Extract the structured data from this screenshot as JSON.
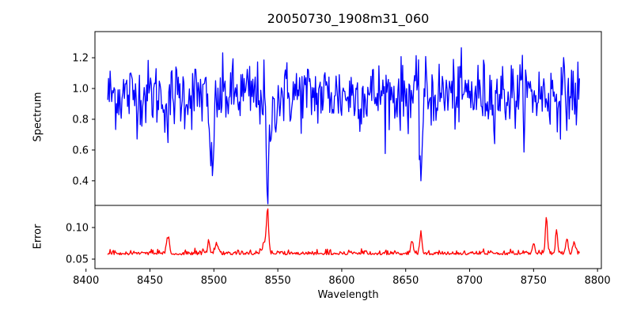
{
  "chart_data": {
    "type": "line",
    "title": "20050730_1908m31_060",
    "xlabel": "Wavelength",
    "xlim": [
      8407,
      8803
    ],
    "xticks": [
      8400,
      8450,
      8500,
      8550,
      8600,
      8650,
      8700,
      8750,
      8800
    ],
    "panels": [
      {
        "ylabel": "Spectrum",
        "ylim": [
          0.24,
          1.37
        ],
        "yticks": [
          0.4,
          0.6,
          0.8,
          1.0,
          1.2
        ],
        "ytick_labels": [
          "0.4",
          "0.6",
          "0.8",
          "1.0",
          "1.2"
        ],
        "series": [
          {
            "color": "#0000ff",
            "x_start": 8417,
            "x_end": 8786,
            "noise": 0.11,
            "baseline": 0.96,
            "features": [
              {
                "x": 8498,
                "depth": 0.35,
                "width": 1.2
              },
              {
                "x": 8542,
                "depth": 0.68,
                "width": 1.0
              },
              {
                "x": 8545,
                "depth": 0.15,
                "width": 2.0
              },
              {
                "x": 8662,
                "depth": 0.5,
                "width": 1.0
              },
              {
                "x": 8498.5,
                "depth": 0.15,
                "width": 3.0
              },
              {
                "x": 8464,
                "depth": 0.18,
                "width": 1.2
              }
            ]
          }
        ]
      },
      {
        "ylabel": "Error",
        "ylim": [
          0.035,
          0.135
        ],
        "yticks": [
          0.05,
          0.1
        ],
        "ytick_labels": [
          "0.05",
          "0.10"
        ],
        "series": [
          {
            "color": "#ff0000",
            "x_start": 8417,
            "x_end": 8786,
            "noise": 0.004,
            "baseline": 0.058,
            "features": [
              {
                "x": 8464,
                "height": 0.035,
                "width": 1.0
              },
              {
                "x": 8496,
                "height": 0.025,
                "width": 0.8
              },
              {
                "x": 8502,
                "height": 0.018,
                "width": 1.0
              },
              {
                "x": 8542,
                "height": 0.07,
                "width": 0.8
              },
              {
                "x": 8540,
                "height": 0.02,
                "width": 2.0
              },
              {
                "x": 8655,
                "height": 0.022,
                "width": 1.0
              },
              {
                "x": 8662,
                "height": 0.04,
                "width": 0.8
              },
              {
                "x": 8750,
                "height": 0.018,
                "width": 1.0
              },
              {
                "x": 8760,
                "height": 0.065,
                "width": 0.8
              },
              {
                "x": 8768,
                "height": 0.04,
                "width": 0.8
              },
              {
                "x": 8776,
                "height": 0.03,
                "width": 0.8
              },
              {
                "x": 8782,
                "height": 0.02,
                "width": 1.0
              }
            ]
          }
        ]
      }
    ]
  }
}
